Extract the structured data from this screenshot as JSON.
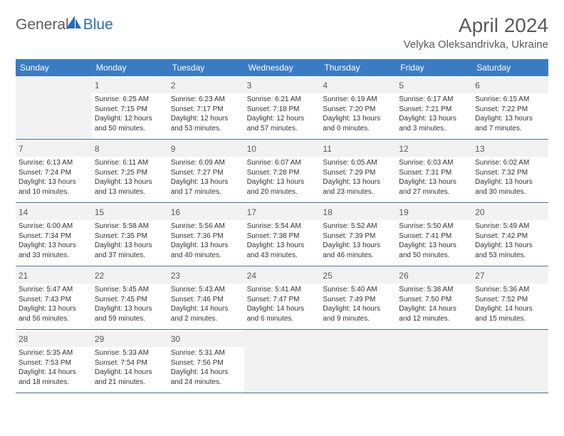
{
  "logo": {
    "part1": "General",
    "part2": "Blue"
  },
  "title": "April 2024",
  "location": "Velyka Oleksandrivka, Ukraine",
  "day_headers": [
    "Sunday",
    "Monday",
    "Tuesday",
    "Wednesday",
    "Thursday",
    "Friday",
    "Saturday"
  ],
  "colors": {
    "header_bg": "#3a7cc4",
    "header_text": "#ffffff",
    "daynum_bg": "#f2f2f2",
    "border": "#4a7090",
    "text_gray": "#5a5a5a",
    "logo_blue": "#2a6db8"
  },
  "weeks": [
    [
      null,
      {
        "n": "1",
        "sr": "6:25 AM",
        "ss": "7:15 PM",
        "dl": "12 hours and 50 minutes."
      },
      {
        "n": "2",
        "sr": "6:23 AM",
        "ss": "7:17 PM",
        "dl": "12 hours and 53 minutes."
      },
      {
        "n": "3",
        "sr": "6:21 AM",
        "ss": "7:18 PM",
        "dl": "12 hours and 57 minutes."
      },
      {
        "n": "4",
        "sr": "6:19 AM",
        "ss": "7:20 PM",
        "dl": "13 hours and 0 minutes."
      },
      {
        "n": "5",
        "sr": "6:17 AM",
        "ss": "7:21 PM",
        "dl": "13 hours and 3 minutes."
      },
      {
        "n": "6",
        "sr": "6:15 AM",
        "ss": "7:22 PM",
        "dl": "13 hours and 7 minutes."
      }
    ],
    [
      {
        "n": "7",
        "sr": "6:13 AM",
        "ss": "7:24 PM",
        "dl": "13 hours and 10 minutes."
      },
      {
        "n": "8",
        "sr": "6:11 AM",
        "ss": "7:25 PM",
        "dl": "13 hours and 13 minutes."
      },
      {
        "n": "9",
        "sr": "6:09 AM",
        "ss": "7:27 PM",
        "dl": "13 hours and 17 minutes."
      },
      {
        "n": "10",
        "sr": "6:07 AM",
        "ss": "7:28 PM",
        "dl": "13 hours and 20 minutes."
      },
      {
        "n": "11",
        "sr": "6:05 AM",
        "ss": "7:29 PM",
        "dl": "13 hours and 23 minutes."
      },
      {
        "n": "12",
        "sr": "6:03 AM",
        "ss": "7:31 PM",
        "dl": "13 hours and 27 minutes."
      },
      {
        "n": "13",
        "sr": "6:02 AM",
        "ss": "7:32 PM",
        "dl": "13 hours and 30 minutes."
      }
    ],
    [
      {
        "n": "14",
        "sr": "6:00 AM",
        "ss": "7:34 PM",
        "dl": "13 hours and 33 minutes."
      },
      {
        "n": "15",
        "sr": "5:58 AM",
        "ss": "7:35 PM",
        "dl": "13 hours and 37 minutes."
      },
      {
        "n": "16",
        "sr": "5:56 AM",
        "ss": "7:36 PM",
        "dl": "13 hours and 40 minutes."
      },
      {
        "n": "17",
        "sr": "5:54 AM",
        "ss": "7:38 PM",
        "dl": "13 hours and 43 minutes."
      },
      {
        "n": "18",
        "sr": "5:52 AM",
        "ss": "7:39 PM",
        "dl": "13 hours and 46 minutes."
      },
      {
        "n": "19",
        "sr": "5:50 AM",
        "ss": "7:41 PM",
        "dl": "13 hours and 50 minutes."
      },
      {
        "n": "20",
        "sr": "5:49 AM",
        "ss": "7:42 PM",
        "dl": "13 hours and 53 minutes."
      }
    ],
    [
      {
        "n": "21",
        "sr": "5:47 AM",
        "ss": "7:43 PM",
        "dl": "13 hours and 56 minutes."
      },
      {
        "n": "22",
        "sr": "5:45 AM",
        "ss": "7:45 PM",
        "dl": "13 hours and 59 minutes."
      },
      {
        "n": "23",
        "sr": "5:43 AM",
        "ss": "7:46 PM",
        "dl": "14 hours and 2 minutes."
      },
      {
        "n": "24",
        "sr": "5:41 AM",
        "ss": "7:47 PM",
        "dl": "14 hours and 6 minutes."
      },
      {
        "n": "25",
        "sr": "5:40 AM",
        "ss": "7:49 PM",
        "dl": "14 hours and 9 minutes."
      },
      {
        "n": "26",
        "sr": "5:38 AM",
        "ss": "7:50 PM",
        "dl": "14 hours and 12 minutes."
      },
      {
        "n": "27",
        "sr": "5:36 AM",
        "ss": "7:52 PM",
        "dl": "14 hours and 15 minutes."
      }
    ],
    [
      {
        "n": "28",
        "sr": "5:35 AM",
        "ss": "7:53 PM",
        "dl": "14 hours and 18 minutes."
      },
      {
        "n": "29",
        "sr": "5:33 AM",
        "ss": "7:54 PM",
        "dl": "14 hours and 21 minutes."
      },
      {
        "n": "30",
        "sr": "5:31 AM",
        "ss": "7:56 PM",
        "dl": "14 hours and 24 minutes."
      },
      null,
      null,
      null,
      null
    ]
  ],
  "labels": {
    "sunrise": "Sunrise:",
    "sunset": "Sunset:",
    "daylight": "Daylight:"
  }
}
